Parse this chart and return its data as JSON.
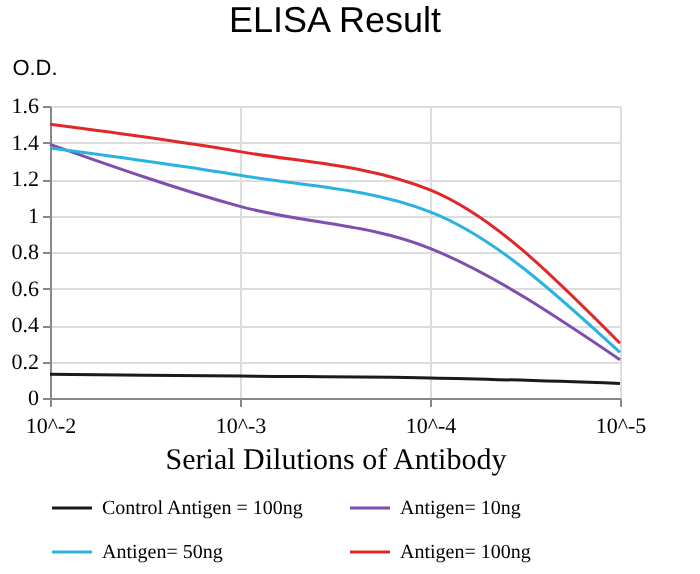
{
  "chart_data": {
    "type": "line",
    "title": "ELISA Result",
    "xlabel": "Serial Dilutions of Antibody",
    "ylabel": "O.D.",
    "categories": [
      "10^-2",
      "10^-3",
      "10^-4",
      "10^-5"
    ],
    "series": [
      {
        "name": "Control Antigen = 100ng",
        "color": "#1a1a1a",
        "values": [
          0.13,
          0.12,
          0.11,
          0.08
        ]
      },
      {
        "name": "Antigen= 10ng",
        "color": "#7f4fb0",
        "values": [
          1.39,
          1.05,
          0.82,
          0.21
        ]
      },
      {
        "name": "Antigen= 50ng",
        "color": "#2ab3e0",
        "values": [
          1.37,
          1.22,
          1.02,
          0.25
        ]
      },
      {
        "name": "Antigen= 100ng",
        "color": "#e0282a",
        "values": [
          1.5,
          1.35,
          1.14,
          0.3
        ]
      }
    ],
    "ylim": [
      0,
      1.6
    ],
    "yticks": [
      0,
      0.2,
      0.4,
      0.6,
      0.8,
      1,
      1.2,
      1.4,
      1.6
    ],
    "grid": true,
    "legend": "bottom",
    "marker": "none",
    "line_style": "solid"
  }
}
